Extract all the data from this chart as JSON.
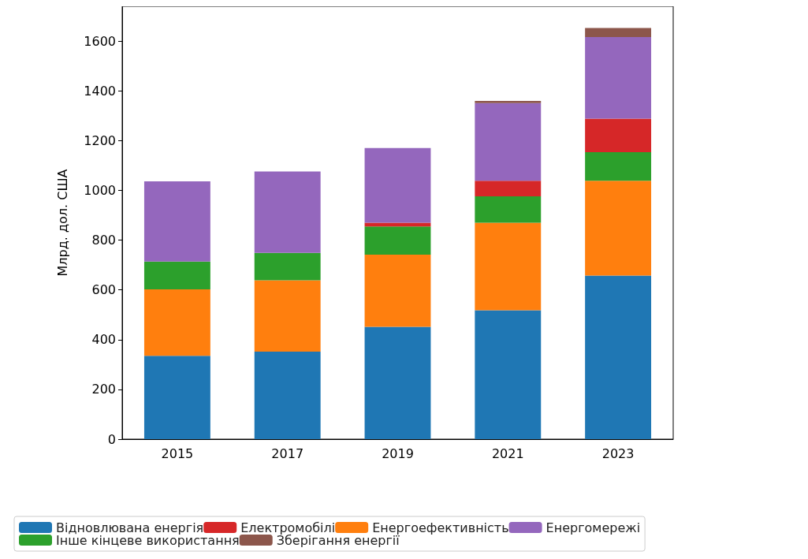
{
  "chart_data": {
    "type": "bar",
    "stacked": true,
    "ylabel": "Млрд. дол. США",
    "categories": [
      "2015",
      "2017",
      "2019",
      "2021",
      "2023"
    ],
    "series": [
      {
        "name": "Відновлювана енергія",
        "color": "#1f77b4",
        "values": [
          335,
          352,
          452,
          518,
          658
        ]
      },
      {
        "name": "Енергоефективність",
        "color": "#ff7f0e",
        "values": [
          267,
          287,
          290,
          352,
          381
        ]
      },
      {
        "name": "Інше кінцеве використання",
        "color": "#2ca02c",
        "values": [
          112,
          110,
          113,
          106,
          115
        ]
      },
      {
        "name": "Електромобілі",
        "color": "#d62728",
        "values": [
          0,
          0,
          15,
          63,
          134
        ]
      },
      {
        "name": "Енергомережі",
        "color": "#9467bd",
        "values": [
          322,
          327,
          300,
          312,
          328
        ]
      },
      {
        "name": "Зберігання енергії",
        "color": "#8c564b",
        "values": [
          0,
          0,
          0,
          9,
          37
        ]
      }
    ],
    "ylim": [
      0,
      1740
    ],
    "yticks": [
      0,
      200,
      400,
      600,
      800,
      1000,
      1200,
      1400,
      1600
    ],
    "grid": false,
    "legend": "bottom"
  }
}
